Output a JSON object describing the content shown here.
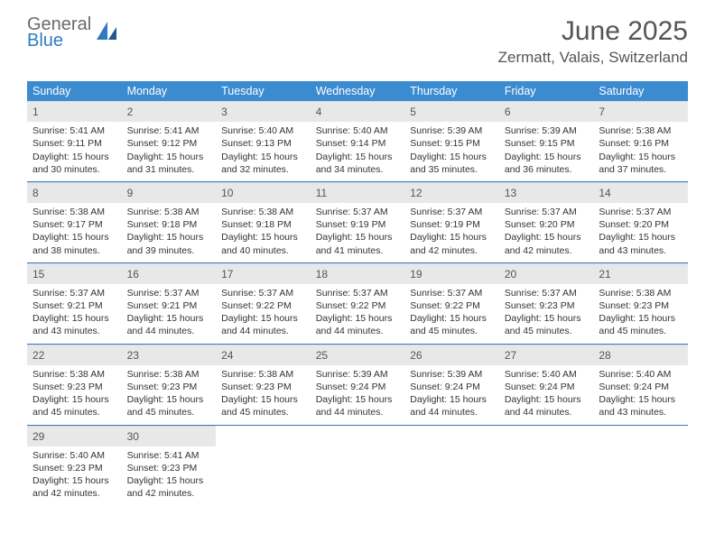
{
  "logo": {
    "text1": "General",
    "text2": "Blue"
  },
  "title": {
    "month": "June 2025",
    "location": "Zermatt, Valais, Switzerland"
  },
  "colors": {
    "header_bg": "#3b8bd0",
    "row_divider": "#2f7bbf",
    "daynum_bg": "#e8e8e8",
    "text": "#333333",
    "muted": "#555555"
  },
  "day_headers": [
    "Sunday",
    "Monday",
    "Tuesday",
    "Wednesday",
    "Thursday",
    "Friday",
    "Saturday"
  ],
  "labels": {
    "sunrise": "Sunrise:",
    "sunset": "Sunset:",
    "daylight": "Daylight:"
  },
  "days": [
    {
      "n": 1,
      "sunrise": "5:41 AM",
      "sunset": "9:11 PM",
      "dl": "15 hours and 30 minutes."
    },
    {
      "n": 2,
      "sunrise": "5:41 AM",
      "sunset": "9:12 PM",
      "dl": "15 hours and 31 minutes."
    },
    {
      "n": 3,
      "sunrise": "5:40 AM",
      "sunset": "9:13 PM",
      "dl": "15 hours and 32 minutes."
    },
    {
      "n": 4,
      "sunrise": "5:40 AM",
      "sunset": "9:14 PM",
      "dl": "15 hours and 34 minutes."
    },
    {
      "n": 5,
      "sunrise": "5:39 AM",
      "sunset": "9:15 PM",
      "dl": "15 hours and 35 minutes."
    },
    {
      "n": 6,
      "sunrise": "5:39 AM",
      "sunset": "9:15 PM",
      "dl": "15 hours and 36 minutes."
    },
    {
      "n": 7,
      "sunrise": "5:38 AM",
      "sunset": "9:16 PM",
      "dl": "15 hours and 37 minutes."
    },
    {
      "n": 8,
      "sunrise": "5:38 AM",
      "sunset": "9:17 PM",
      "dl": "15 hours and 38 minutes."
    },
    {
      "n": 9,
      "sunrise": "5:38 AM",
      "sunset": "9:18 PM",
      "dl": "15 hours and 39 minutes."
    },
    {
      "n": 10,
      "sunrise": "5:38 AM",
      "sunset": "9:18 PM",
      "dl": "15 hours and 40 minutes."
    },
    {
      "n": 11,
      "sunrise": "5:37 AM",
      "sunset": "9:19 PM",
      "dl": "15 hours and 41 minutes."
    },
    {
      "n": 12,
      "sunrise": "5:37 AM",
      "sunset": "9:19 PM",
      "dl": "15 hours and 42 minutes."
    },
    {
      "n": 13,
      "sunrise": "5:37 AM",
      "sunset": "9:20 PM",
      "dl": "15 hours and 42 minutes."
    },
    {
      "n": 14,
      "sunrise": "5:37 AM",
      "sunset": "9:20 PM",
      "dl": "15 hours and 43 minutes."
    },
    {
      "n": 15,
      "sunrise": "5:37 AM",
      "sunset": "9:21 PM",
      "dl": "15 hours and 43 minutes."
    },
    {
      "n": 16,
      "sunrise": "5:37 AM",
      "sunset": "9:21 PM",
      "dl": "15 hours and 44 minutes."
    },
    {
      "n": 17,
      "sunrise": "5:37 AM",
      "sunset": "9:22 PM",
      "dl": "15 hours and 44 minutes."
    },
    {
      "n": 18,
      "sunrise": "5:37 AM",
      "sunset": "9:22 PM",
      "dl": "15 hours and 44 minutes."
    },
    {
      "n": 19,
      "sunrise": "5:37 AM",
      "sunset": "9:22 PM",
      "dl": "15 hours and 45 minutes."
    },
    {
      "n": 20,
      "sunrise": "5:37 AM",
      "sunset": "9:23 PM",
      "dl": "15 hours and 45 minutes."
    },
    {
      "n": 21,
      "sunrise": "5:38 AM",
      "sunset": "9:23 PM",
      "dl": "15 hours and 45 minutes."
    },
    {
      "n": 22,
      "sunrise": "5:38 AM",
      "sunset": "9:23 PM",
      "dl": "15 hours and 45 minutes."
    },
    {
      "n": 23,
      "sunrise": "5:38 AM",
      "sunset": "9:23 PM",
      "dl": "15 hours and 45 minutes."
    },
    {
      "n": 24,
      "sunrise": "5:38 AM",
      "sunset": "9:23 PM",
      "dl": "15 hours and 45 minutes."
    },
    {
      "n": 25,
      "sunrise": "5:39 AM",
      "sunset": "9:24 PM",
      "dl": "15 hours and 44 minutes."
    },
    {
      "n": 26,
      "sunrise": "5:39 AM",
      "sunset": "9:24 PM",
      "dl": "15 hours and 44 minutes."
    },
    {
      "n": 27,
      "sunrise": "5:40 AM",
      "sunset": "9:24 PM",
      "dl": "15 hours and 44 minutes."
    },
    {
      "n": 28,
      "sunrise": "5:40 AM",
      "sunset": "9:24 PM",
      "dl": "15 hours and 43 minutes."
    },
    {
      "n": 29,
      "sunrise": "5:40 AM",
      "sunset": "9:23 PM",
      "dl": "15 hours and 42 minutes."
    },
    {
      "n": 30,
      "sunrise": "5:41 AM",
      "sunset": "9:23 PM",
      "dl": "15 hours and 42 minutes."
    }
  ]
}
